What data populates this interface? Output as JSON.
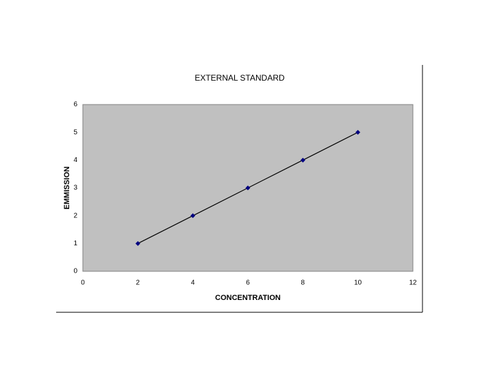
{
  "chart_data": {
    "type": "scatter",
    "title": "EXTERNAL STANDARD",
    "x_label": "CONCENTRATION",
    "y_label": "EMMISSION",
    "x": [
      2,
      4,
      6,
      8,
      10
    ],
    "values": [
      1,
      2,
      3,
      4,
      5
    ],
    "color": "#000080",
    "line_color": "#000000",
    "plot_background": "#c0c0c0",
    "xlim": [
      0,
      12
    ],
    "xticks": [
      0,
      2,
      4,
      6,
      8,
      10,
      12
    ],
    "ylim": [
      0,
      6
    ],
    "yticks": [
      0,
      1,
      2,
      3,
      4,
      5,
      6
    ],
    "grid": false
  }
}
